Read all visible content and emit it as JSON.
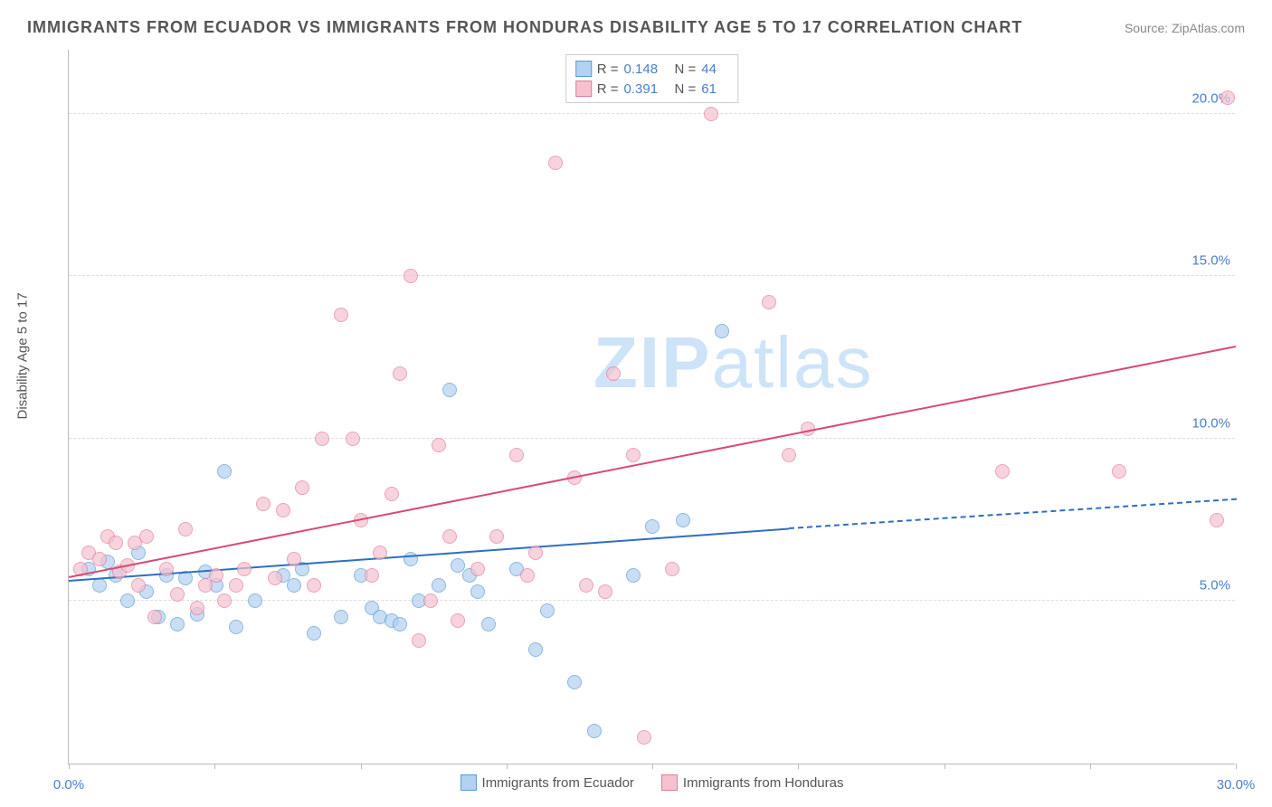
{
  "header": {
    "title": "IMMIGRANTS FROM ECUADOR VS IMMIGRANTS FROM HONDURAS DISABILITY AGE 5 TO 17 CORRELATION CHART",
    "source": "Source: ZipAtlas.com"
  },
  "chart": {
    "type": "scatter",
    "y_label": "Disability Age 5 to 17",
    "watermark": "ZIPatlas",
    "xlim": [
      0,
      30
    ],
    "ylim": [
      0,
      22
    ],
    "x_ticks": [
      0,
      3.75,
      7.5,
      11.25,
      15,
      18.75,
      22.5,
      26.25,
      30
    ],
    "x_tick_labels": {
      "0": "0.0%",
      "30": "30.0%"
    },
    "y_ticks": [
      5,
      10,
      15,
      20
    ],
    "y_tick_labels": {
      "5": "5.0%",
      "10": "10.0%",
      "15": "15.0%",
      "20": "20.0%"
    },
    "background_color": "#ffffff",
    "grid_color": "#dddddd",
    "axis_color": "#bbbbbb",
    "tick_label_color": "#4a7ec7",
    "marker_radius": 8,
    "marker_opacity": 0.7,
    "series": {
      "ecuador": {
        "label": "Immigrants from Ecuador",
        "fill": "#b3d1f0",
        "stroke": "#5a9bd5",
        "R": "0.148",
        "N": "44",
        "trend": {
          "x1": 0,
          "y1": 5.6,
          "x2": 18.5,
          "y2": 7.2,
          "dash_x2": 30,
          "dash_y2": 8.1,
          "color": "#2e6fc0"
        },
        "points": [
          [
            0.5,
            6.0
          ],
          [
            0.8,
            5.5
          ],
          [
            1.0,
            6.2
          ],
          [
            1.2,
            5.8
          ],
          [
            1.5,
            5.0
          ],
          [
            1.8,
            6.5
          ],
          [
            2.0,
            5.3
          ],
          [
            2.3,
            4.5
          ],
          [
            2.5,
            5.8
          ],
          [
            2.8,
            4.3
          ],
          [
            3.0,
            5.7
          ],
          [
            3.3,
            4.6
          ],
          [
            3.5,
            5.9
          ],
          [
            3.8,
            5.5
          ],
          [
            4.0,
            9.0
          ],
          [
            4.3,
            4.2
          ],
          [
            4.8,
            5.0
          ],
          [
            5.5,
            5.8
          ],
          [
            5.8,
            5.5
          ],
          [
            6.0,
            6.0
          ],
          [
            6.3,
            4.0
          ],
          [
            7.0,
            4.5
          ],
          [
            7.5,
            5.8
          ],
          [
            7.8,
            4.8
          ],
          [
            8.0,
            4.5
          ],
          [
            8.3,
            4.4
          ],
          [
            8.5,
            4.3
          ],
          [
            8.8,
            6.3
          ],
          [
            9.0,
            5.0
          ],
          [
            9.5,
            5.5
          ],
          [
            9.8,
            11.5
          ],
          [
            10.0,
            6.1
          ],
          [
            10.3,
            5.8
          ],
          [
            10.5,
            5.3
          ],
          [
            10.8,
            4.3
          ],
          [
            11.5,
            6.0
          ],
          [
            12.0,
            3.5
          ],
          [
            12.3,
            4.7
          ],
          [
            13.0,
            2.5
          ],
          [
            13.5,
            1.0
          ],
          [
            14.5,
            5.8
          ],
          [
            15.0,
            7.3
          ],
          [
            15.8,
            7.5
          ],
          [
            16.8,
            13.3
          ]
        ]
      },
      "honduras": {
        "label": "Immigrants from Honduras",
        "fill": "#f5c2d0",
        "stroke": "#e57a9a",
        "R": "0.391",
        "N": "61",
        "trend": {
          "x1": 0,
          "y1": 5.7,
          "x2": 30,
          "y2": 12.8,
          "color": "#d84a78"
        },
        "points": [
          [
            0.3,
            6.0
          ],
          [
            0.5,
            6.5
          ],
          [
            0.8,
            6.3
          ],
          [
            1.0,
            7.0
          ],
          [
            1.2,
            6.8
          ],
          [
            1.3,
            5.9
          ],
          [
            1.5,
            6.1
          ],
          [
            1.7,
            6.8
          ],
          [
            1.8,
            5.5
          ],
          [
            2.0,
            7.0
          ],
          [
            2.2,
            4.5
          ],
          [
            2.5,
            6.0
          ],
          [
            2.8,
            5.2
          ],
          [
            3.0,
            7.2
          ],
          [
            3.3,
            4.8
          ],
          [
            3.5,
            5.5
          ],
          [
            3.8,
            5.8
          ],
          [
            4.0,
            5.0
          ],
          [
            4.3,
            5.5
          ],
          [
            4.5,
            6.0
          ],
          [
            5.0,
            8.0
          ],
          [
            5.3,
            5.7
          ],
          [
            5.5,
            7.8
          ],
          [
            5.8,
            6.3
          ],
          [
            6.0,
            8.5
          ],
          [
            6.3,
            5.5
          ],
          [
            6.5,
            10.0
          ],
          [
            7.0,
            13.8
          ],
          [
            7.3,
            10.0
          ],
          [
            7.5,
            7.5
          ],
          [
            7.8,
            5.8
          ],
          [
            8.0,
            6.5
          ],
          [
            8.3,
            8.3
          ],
          [
            8.5,
            12.0
          ],
          [
            8.8,
            15.0
          ],
          [
            9.0,
            3.8
          ],
          [
            9.3,
            5.0
          ],
          [
            9.5,
            9.8
          ],
          [
            9.8,
            7.0
          ],
          [
            10.0,
            4.4
          ],
          [
            10.5,
            6.0
          ],
          [
            11.0,
            7.0
          ],
          [
            11.5,
            9.5
          ],
          [
            11.8,
            5.8
          ],
          [
            12.0,
            6.5
          ],
          [
            12.5,
            18.5
          ],
          [
            13.0,
            8.8
          ],
          [
            13.3,
            5.5
          ],
          [
            14.0,
            12.0
          ],
          [
            14.5,
            9.5
          ],
          [
            14.8,
            0.8
          ],
          [
            15.5,
            6.0
          ],
          [
            16.5,
            20.0
          ],
          [
            18.0,
            14.2
          ],
          [
            18.5,
            9.5
          ],
          [
            19.0,
            10.3
          ],
          [
            24.0,
            9.0
          ],
          [
            27.0,
            9.0
          ],
          [
            29.5,
            7.5
          ],
          [
            29.8,
            20.5
          ],
          [
            13.8,
            5.3
          ]
        ]
      }
    }
  }
}
